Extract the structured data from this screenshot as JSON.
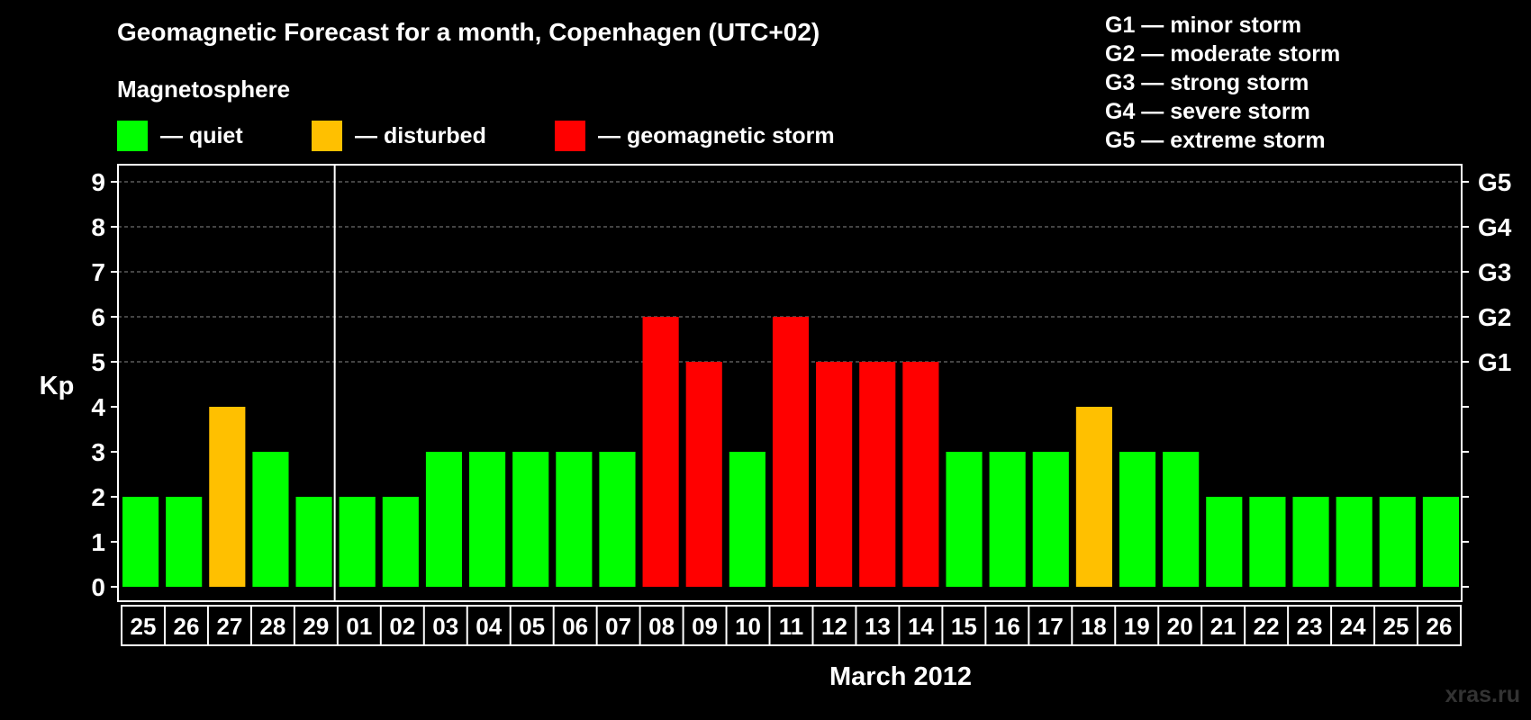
{
  "title": "Geomagnetic Forecast for a month, Copenhagen (UTC+02)",
  "subtitle": "Magnetosphere",
  "legend": [
    {
      "label": "— quiet",
      "color": "#00ff00"
    },
    {
      "label": "— disturbed",
      "color": "#ffc000"
    },
    {
      "label": "— geomagnetic storm",
      "color": "#ff0000"
    }
  ],
  "g_scale": [
    "G1 — minor storm",
    "G2 — moderate storm",
    "G3 — strong storm",
    "G4 — severe storm",
    "G5 — extreme storm"
  ],
  "watermark": "xras.ru",
  "chart_data": {
    "type": "bar",
    "title": "Geomagnetic Forecast for a month, Copenhagen (UTC+02)",
    "xlabel": "March 2012",
    "ylabel": "Kp",
    "ylim": [
      0,
      9
    ],
    "yticks": [
      0,
      1,
      2,
      3,
      4,
      5,
      6,
      7,
      8,
      9
    ],
    "right_axis_labels": [
      {
        "kp": 5,
        "label": "G1"
      },
      {
        "kp": 6,
        "label": "G2"
      },
      {
        "kp": 7,
        "label": "G3"
      },
      {
        "kp": 8,
        "label": "G4"
      },
      {
        "kp": 9,
        "label": "G5"
      }
    ],
    "grid": true,
    "month_divider_after_index": 4,
    "categories": [
      "25",
      "26",
      "27",
      "28",
      "29",
      "01",
      "02",
      "03",
      "04",
      "05",
      "06",
      "07",
      "08",
      "09",
      "10",
      "11",
      "12",
      "13",
      "14",
      "15",
      "16",
      "17",
      "18",
      "19",
      "20",
      "21",
      "22",
      "23",
      "24",
      "25",
      "26"
    ],
    "values": [
      2,
      2,
      4,
      3,
      2,
      2,
      2,
      3,
      3,
      3,
      3,
      3,
      6,
      5,
      3,
      6,
      5,
      5,
      5,
      3,
      3,
      3,
      4,
      3,
      3,
      2,
      2,
      2,
      2,
      2,
      2
    ],
    "colors": {
      "quiet": "#00ff00",
      "disturbed": "#ffc000",
      "storm": "#ff0000"
    }
  }
}
